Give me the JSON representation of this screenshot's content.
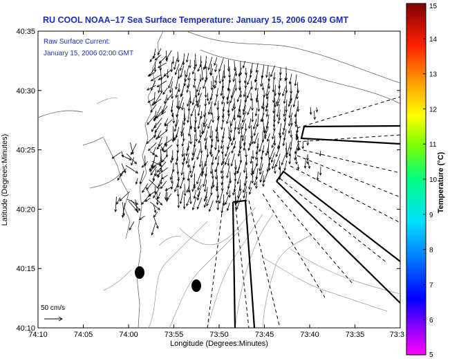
{
  "title": "RU COOL  NOAA–17  Sea Surface Temperature:  January 15, 2006 0249 GMT",
  "legend": {
    "line1": "Raw Surface Current:",
    "line2": "January 15, 2006 02:00 GMT"
  },
  "scale": {
    "label": "50 cm/s",
    "speed_cm_s": 50
  },
  "x_axis": {
    "label": "Longitude (Degrees:Minutes)",
    "ticks": [
      "74:10",
      "74:05",
      "74:00",
      "73:55",
      "73:50",
      "73:45",
      "73:40",
      "73:35",
      "73:3"
    ]
  },
  "y_axis": {
    "label": "Latitude (Degrees:Minutes)",
    "ticks": [
      "40:35",
      "40:30",
      "40:25",
      "40:20",
      "40:15",
      "40:10"
    ]
  },
  "colorbar": {
    "label": "Temperature (°C)",
    "ticks": [
      "15",
      "14",
      "13",
      "12",
      "11",
      "10",
      "9",
      "8",
      "7",
      "6",
      "5"
    ],
    "range": [
      5,
      15
    ],
    "colormap": [
      "#ff00ff",
      "#0000ff",
      "#00e0ff",
      "#00ff80",
      "#80ff00",
      "#ffff00",
      "#ff9900",
      "#ff2200",
      "#800000"
    ]
  },
  "colors": {
    "title": "#1a2fb8",
    "vectors": "#000000",
    "contours": "#888888"
  }
}
